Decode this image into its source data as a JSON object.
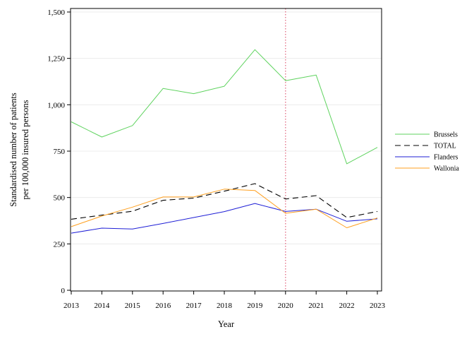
{
  "chart_data": {
    "type": "line",
    "title": "",
    "xlabel": "Year",
    "ylabel_lines": [
      "Standardised number of patients",
      "per 100,000 insured persons"
    ],
    "x": [
      2013,
      2014,
      2015,
      2016,
      2017,
      2018,
      2019,
      2020,
      2021,
      2022,
      2023
    ],
    "x_tick_labels": [
      "2013",
      "2014",
      "2015",
      "2016",
      "2017",
      "2018",
      "2019",
      "2020",
      "2021",
      "2022",
      "2023"
    ],
    "xlim": [
      2013,
      2023
    ],
    "ylim": [
      0,
      1500
    ],
    "y_ticks": [
      0,
      250,
      500,
      750,
      1000,
      1250,
      1500
    ],
    "y_tick_labels": [
      "0",
      "250",
      "500",
      "750",
      "1,000",
      "1,250",
      "1,500"
    ],
    "grid": "horizontal",
    "legend_position": "right",
    "reference_line": {
      "x": 2020,
      "color": "#e0607a",
      "style": "dotted"
    },
    "series": [
      {
        "name": "Brussels",
        "color": "#5fd35f",
        "dash": "none",
        "values": [
          908,
          826,
          888,
          1088,
          1060,
          1100,
          1297,
          1130,
          1160,
          682,
          770
        ]
      },
      {
        "name": "TOTAL",
        "color": "#000000",
        "dash": "8,5",
        "values": [
          383,
          405,
          426,
          485,
          497,
          534,
          575,
          492,
          510,
          392,
          425
        ]
      },
      {
        "name": "Flanders",
        "color": "#1f1fd6",
        "dash": "none",
        "values": [
          308,
          335,
          330,
          360,
          392,
          424,
          468,
          425,
          437,
          372,
          385
        ]
      },
      {
        "name": "Wallonia",
        "color": "#ffa020",
        "dash": "none",
        "values": [
          343,
          400,
          448,
          503,
          503,
          545,
          538,
          415,
          437,
          337,
          390
        ]
      }
    ]
  }
}
